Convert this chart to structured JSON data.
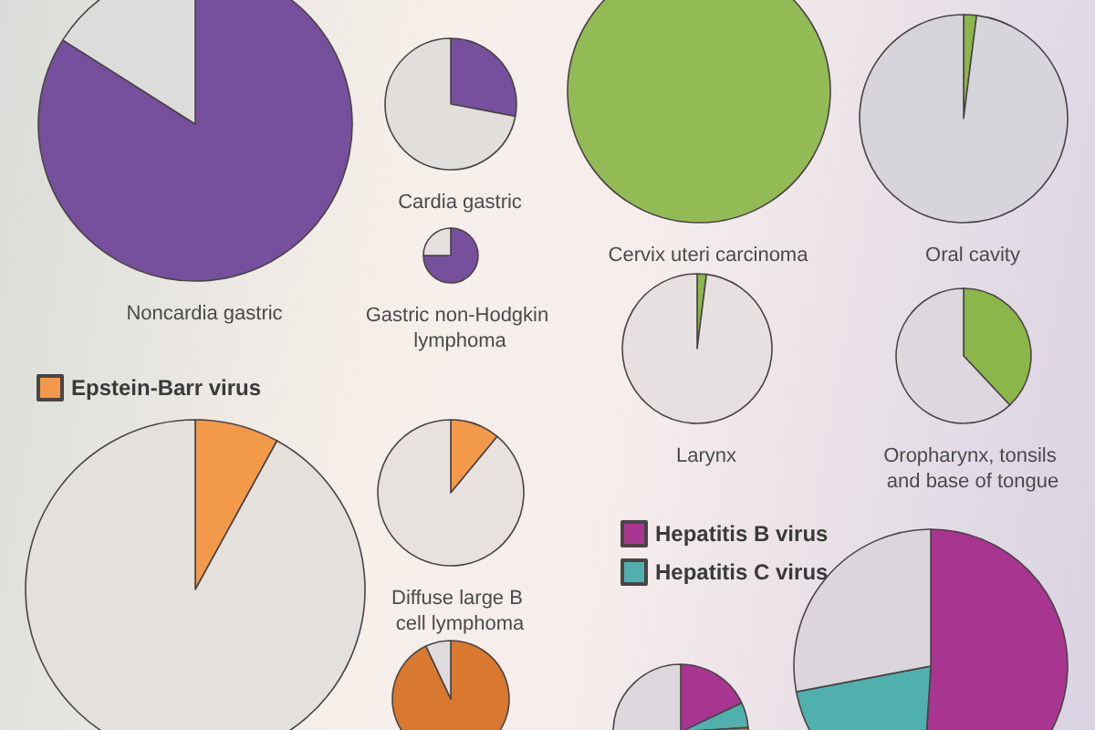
{
  "chart_data": [
    {
      "type": "pie",
      "title": "Noncardia gastric",
      "categories": [
        null,
        null
      ],
      "values": [
        84,
        16
      ],
      "colors": [
        "#76509c",
        "#dcdcda"
      ]
    },
    {
      "type": "pie",
      "title": "Cardia gastric",
      "categories": [
        null,
        null
      ],
      "values": [
        28,
        72
      ],
      "colors": [
        "#76509c",
        "#e2dedc"
      ]
    },
    {
      "type": "pie",
      "title": "Gastric non-Hodgkin lymphoma",
      "categories": [
        null,
        null
      ],
      "values": [
        75,
        25
      ],
      "colors": [
        "#76509c",
        "#e6e1de"
      ]
    },
    {
      "type": "pie",
      "title": "Cervix uteri carcinoma",
      "categories": [
        null
      ],
      "values": [
        100
      ],
      "colors": [
        "#93bb55"
      ]
    },
    {
      "type": "pie",
      "title": "Oral cavity",
      "categories": [
        null,
        null
      ],
      "values": [
        2,
        98
      ],
      "colors": [
        "#8ab64a",
        "#d8d4dc"
      ]
    },
    {
      "type": "pie",
      "title": "Larynx",
      "categories": [
        null,
        null
      ],
      "values": [
        2,
        98
      ],
      "colors": [
        "#8ab64a",
        "#e6e0e0"
      ]
    },
    {
      "type": "pie",
      "title": "Oropharynx, tonsils and base of tongue",
      "categories": [
        null,
        null
      ],
      "values": [
        38,
        62
      ],
      "colors": [
        "#8ab64a",
        "#dcd8de"
      ]
    },
    {
      "type": "pie",
      "categories": [
        "Epstein-Barr virus",
        null
      ],
      "values": [
        8,
        92
      ],
      "colors": [
        "#f2994a",
        "#e4e0dc"
      ],
      "legend": "top left"
    },
    {
      "type": "pie",
      "title": "Diffuse large B cell lymphoma",
      "categories": [
        null,
        null
      ],
      "values": [
        11,
        89
      ],
      "colors": [
        "#f2994a",
        "#e8e2de"
      ]
    },
    {
      "type": "pie",
      "categories": [
        null,
        null
      ],
      "values": [
        93,
        7
      ],
      "colors": [
        "#d9782f",
        "#dedbde"
      ]
    },
    {
      "type": "pie",
      "categories": [
        null,
        null,
        null,
        null
      ],
      "values": [
        18,
        6,
        3,
        73
      ],
      "colors": [
        "#a8358f",
        "#4fb0ad",
        "#d9782f",
        "#dcd8de"
      ]
    },
    {
      "type": "pie",
      "categories": [
        "Hepatitis B virus",
        "Hepatitis C virus",
        null
      ],
      "values": [
        51,
        21,
        28
      ],
      "colors": [
        "#a8358f",
        "#4fb0ad",
        "#dcd6dc"
      ],
      "legend": "top left"
    }
  ]
}
